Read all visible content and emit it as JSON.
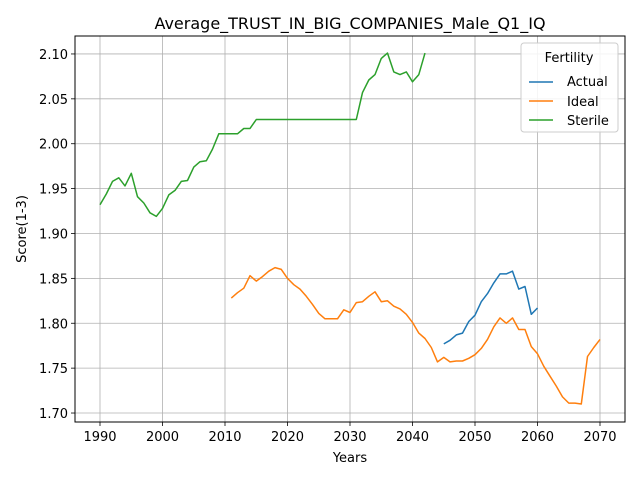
{
  "chart_data": {
    "type": "line",
    "title": "Average_TRUST_IN_BIG_COMPANIES_Male_Q1_IQ",
    "xlabel": "Years",
    "ylabel": "Score(1-3)",
    "xlim": [
      1986,
      2074
    ],
    "ylim": [
      1.69,
      2.12
    ],
    "xticks": [
      1990,
      2000,
      2010,
      2020,
      2030,
      2040,
      2050,
      2060,
      2070
    ],
    "yticks": [
      1.7,
      1.75,
      1.8,
      1.85,
      1.9,
      1.95,
      2.0,
      2.05,
      2.1
    ],
    "grid": true,
    "legend": {
      "title": "Fertility",
      "position": "top-right"
    },
    "series": [
      {
        "name": "Actual",
        "color": "#1f77b4",
        "points": [
          [
            2045,
            1.777
          ],
          [
            2046,
            1.781
          ],
          [
            2047,
            1.787
          ],
          [
            2048,
            1.789
          ],
          [
            2049,
            1.802
          ],
          [
            2050,
            1.809
          ],
          [
            2051,
            1.824
          ],
          [
            2052,
            1.833
          ],
          [
            2053,
            1.845
          ],
          [
            2054,
            1.855
          ],
          [
            2055,
            1.855
          ],
          [
            2056,
            1.858
          ],
          [
            2057,
            1.838
          ],
          [
            2058,
            1.841
          ],
          [
            2059,
            1.81
          ],
          [
            2060,
            1.817
          ]
        ]
      },
      {
        "name": "Ideal",
        "color": "#ff7f0e",
        "points": [
          [
            2011,
            1.828
          ],
          [
            2012,
            1.834
          ],
          [
            2013,
            1.839
          ],
          [
            2014,
            1.853
          ],
          [
            2015,
            1.847
          ],
          [
            2016,
            1.852
          ],
          [
            2017,
            1.858
          ],
          [
            2018,
            1.862
          ],
          [
            2019,
            1.86
          ],
          [
            2020,
            1.85
          ],
          [
            2021,
            1.843
          ],
          [
            2022,
            1.838
          ],
          [
            2023,
            1.83
          ],
          [
            2024,
            1.821
          ],
          [
            2025,
            1.811
          ],
          [
            2026,
            1.805
          ],
          [
            2027,
            1.805
          ],
          [
            2028,
            1.805
          ],
          [
            2029,
            1.815
          ],
          [
            2030,
            1.812
          ],
          [
            2031,
            1.823
          ],
          [
            2032,
            1.824
          ],
          [
            2033,
            1.83
          ],
          [
            2034,
            1.835
          ],
          [
            2035,
            1.824
          ],
          [
            2036,
            1.825
          ],
          [
            2037,
            1.819
          ],
          [
            2038,
            1.816
          ],
          [
            2039,
            1.81
          ],
          [
            2040,
            1.801
          ],
          [
            2041,
            1.789
          ],
          [
            2042,
            1.783
          ],
          [
            2043,
            1.773
          ],
          [
            2044,
            1.757
          ],
          [
            2045,
            1.762
          ],
          [
            2046,
            1.757
          ],
          [
            2047,
            1.758
          ],
          [
            2048,
            1.758
          ],
          [
            2049,
            1.761
          ],
          [
            2050,
            1.765
          ],
          [
            2051,
            1.772
          ],
          [
            2052,
            1.782
          ],
          [
            2053,
            1.796
          ],
          [
            2054,
            1.806
          ],
          [
            2055,
            1.8
          ],
          [
            2056,
            1.806
          ],
          [
            2057,
            1.793
          ],
          [
            2058,
            1.793
          ],
          [
            2059,
            1.774
          ],
          [
            2060,
            1.766
          ],
          [
            2061,
            1.752
          ],
          [
            2062,
            1.741
          ],
          [
            2063,
            1.73
          ],
          [
            2064,
            1.718
          ],
          [
            2065,
            1.711
          ],
          [
            2066,
            1.711
          ],
          [
            2067,
            1.71
          ],
          [
            2068,
            1.763
          ],
          [
            2069,
            1.773
          ],
          [
            2070,
            1.782
          ]
        ]
      },
      {
        "name": "Sterile",
        "color": "#2ca02c",
        "points": [
          [
            1990,
            1.932
          ],
          [
            1991,
            1.944
          ],
          [
            1992,
            1.958
          ],
          [
            1993,
            1.962
          ],
          [
            1994,
            1.953
          ],
          [
            1995,
            1.967
          ],
          [
            1996,
            1.941
          ],
          [
            1997,
            1.934
          ],
          [
            1998,
            1.923
          ],
          [
            1999,
            1.919
          ],
          [
            2000,
            1.928
          ],
          [
            2001,
            1.943
          ],
          [
            2002,
            1.948
          ],
          [
            2003,
            1.958
          ],
          [
            2004,
            1.959
          ],
          [
            2005,
            1.974
          ],
          [
            2006,
            1.98
          ],
          [
            2007,
            1.981
          ],
          [
            2008,
            1.994
          ],
          [
            2009,
            2.011
          ],
          [
            2010,
            2.011
          ],
          [
            2011,
            2.011
          ],
          [
            2012,
            2.011
          ],
          [
            2013,
            2.017
          ],
          [
            2014,
            2.017
          ],
          [
            2015,
            2.027
          ],
          [
            2016,
            2.027
          ],
          [
            2017,
            2.027
          ],
          [
            2018,
            2.027
          ],
          [
            2030,
            2.027
          ],
          [
            2031,
            2.027
          ],
          [
            2032,
            2.057
          ],
          [
            2033,
            2.071
          ],
          [
            2034,
            2.077
          ],
          [
            2035,
            2.095
          ],
          [
            2036,
            2.101
          ],
          [
            2037,
            2.08
          ],
          [
            2038,
            2.077
          ],
          [
            2039,
            2.08
          ],
          [
            2040,
            2.069
          ],
          [
            2041,
            2.077
          ],
          [
            2042,
            2.101
          ]
        ]
      }
    ]
  }
}
